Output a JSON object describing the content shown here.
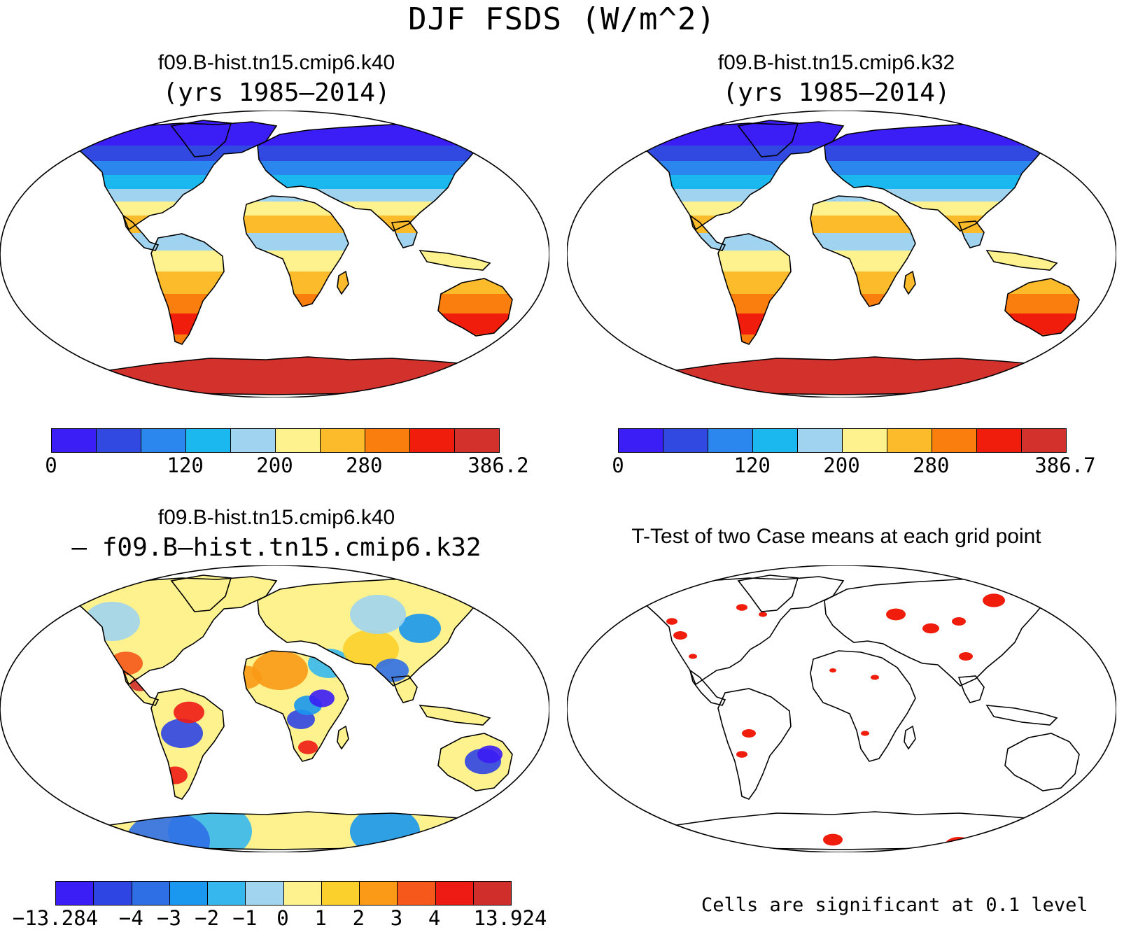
{
  "figure": {
    "title": "DJF FSDS (W/m^2)"
  },
  "panels": [
    {
      "title": "f09.B-hist.tn15.cmip6.k40",
      "subtitle": "(yrs 1985–2014)",
      "colorbar": {
        "colors": [
          "#3b1df5",
          "#3149e0",
          "#2b86ee",
          "#1bb7ef",
          "#9fd3ef",
          "#fdf28d",
          "#fbbb2a",
          "#f97e0e",
          "#f01d0c",
          "#d2312c"
        ],
        "ticks": [
          "0",
          "120",
          "200",
          "280",
          "386.2"
        ]
      }
    },
    {
      "title": "f09.B-hist.tn15.cmip6.k32",
      "subtitle": "(yrs 1985–2014)",
      "colorbar": {
        "colors": [
          "#3b1df5",
          "#3149e0",
          "#2b86ee",
          "#1bb7ef",
          "#9fd3ef",
          "#fdf28d",
          "#fbbb2a",
          "#f97e0e",
          "#f01d0c",
          "#d2312c"
        ],
        "ticks": [
          "0",
          "120",
          "200",
          "280",
          "386.7"
        ]
      }
    },
    {
      "title": "f09.B-hist.tn15.cmip6.k40",
      "subtitle": "– f09.B–hist.tn15.cmip6.k32",
      "colorbar": {
        "colors": [
          "#3b1df5",
          "#2f45e3",
          "#2f6fe6",
          "#1a97ee",
          "#36b8ee",
          "#a1d4ee",
          "#fdf28d",
          "#fcd02c",
          "#fa9a17",
          "#f5581a",
          "#ee1b14",
          "#d02e2b"
        ],
        "ticks": [
          "−13.284",
          "−4",
          "−3",
          "−2",
          "−1",
          "0",
          "1",
          "2",
          "3",
          "4",
          "13.924"
        ]
      }
    },
    {
      "title": "T-Test of two Case means at each grid point",
      "note": "Cells are significant at 0.1 level",
      "significant_color": "#f01d0c"
    }
  ]
}
